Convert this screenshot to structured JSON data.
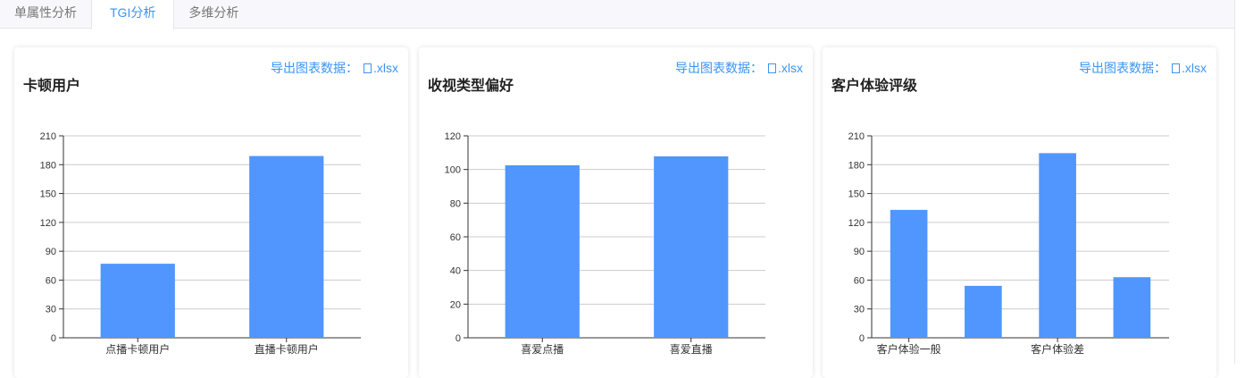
{
  "tabs": [
    {
      "label": "单属性分析",
      "active": false
    },
    {
      "label": "TGI分析",
      "active": true
    },
    {
      "label": "多维分析",
      "active": false
    }
  ],
  "export_label": "导出图表数据：",
  "export_icon": "file-icon",
  "export_ext": ".xlsx",
  "colors": {
    "bar": "#5096fe",
    "accent": "#3a95f5"
  },
  "chart_data": [
    {
      "type": "bar",
      "title": "卡顿用户",
      "categories": [
        "点播卡顿用户",
        "直播卡顿用户"
      ],
      "values": [
        77,
        189
      ],
      "ylim": [
        0,
        210
      ],
      "yticks": [
        0,
        30,
        60,
        90,
        120,
        150,
        180,
        210
      ],
      "grid": true
    },
    {
      "type": "bar",
      "title": "收视类型偏好",
      "categories": [
        "喜爱点播",
        "喜爱直播"
      ],
      "values": [
        102.5,
        107.8
      ],
      "ylim": [
        0,
        120
      ],
      "yticks": [
        0,
        20,
        40,
        60,
        80,
        100,
        120
      ],
      "grid": true
    },
    {
      "type": "bar",
      "title": "客户体验评级",
      "categories": [
        "客户体验一般",
        "",
        "客户体验差",
        ""
      ],
      "values": [
        133,
        54,
        192,
        63
      ],
      "ylim": [
        0,
        210
      ],
      "yticks": [
        0,
        30,
        60,
        90,
        120,
        150,
        180,
        210
      ],
      "grid": true
    }
  ]
}
